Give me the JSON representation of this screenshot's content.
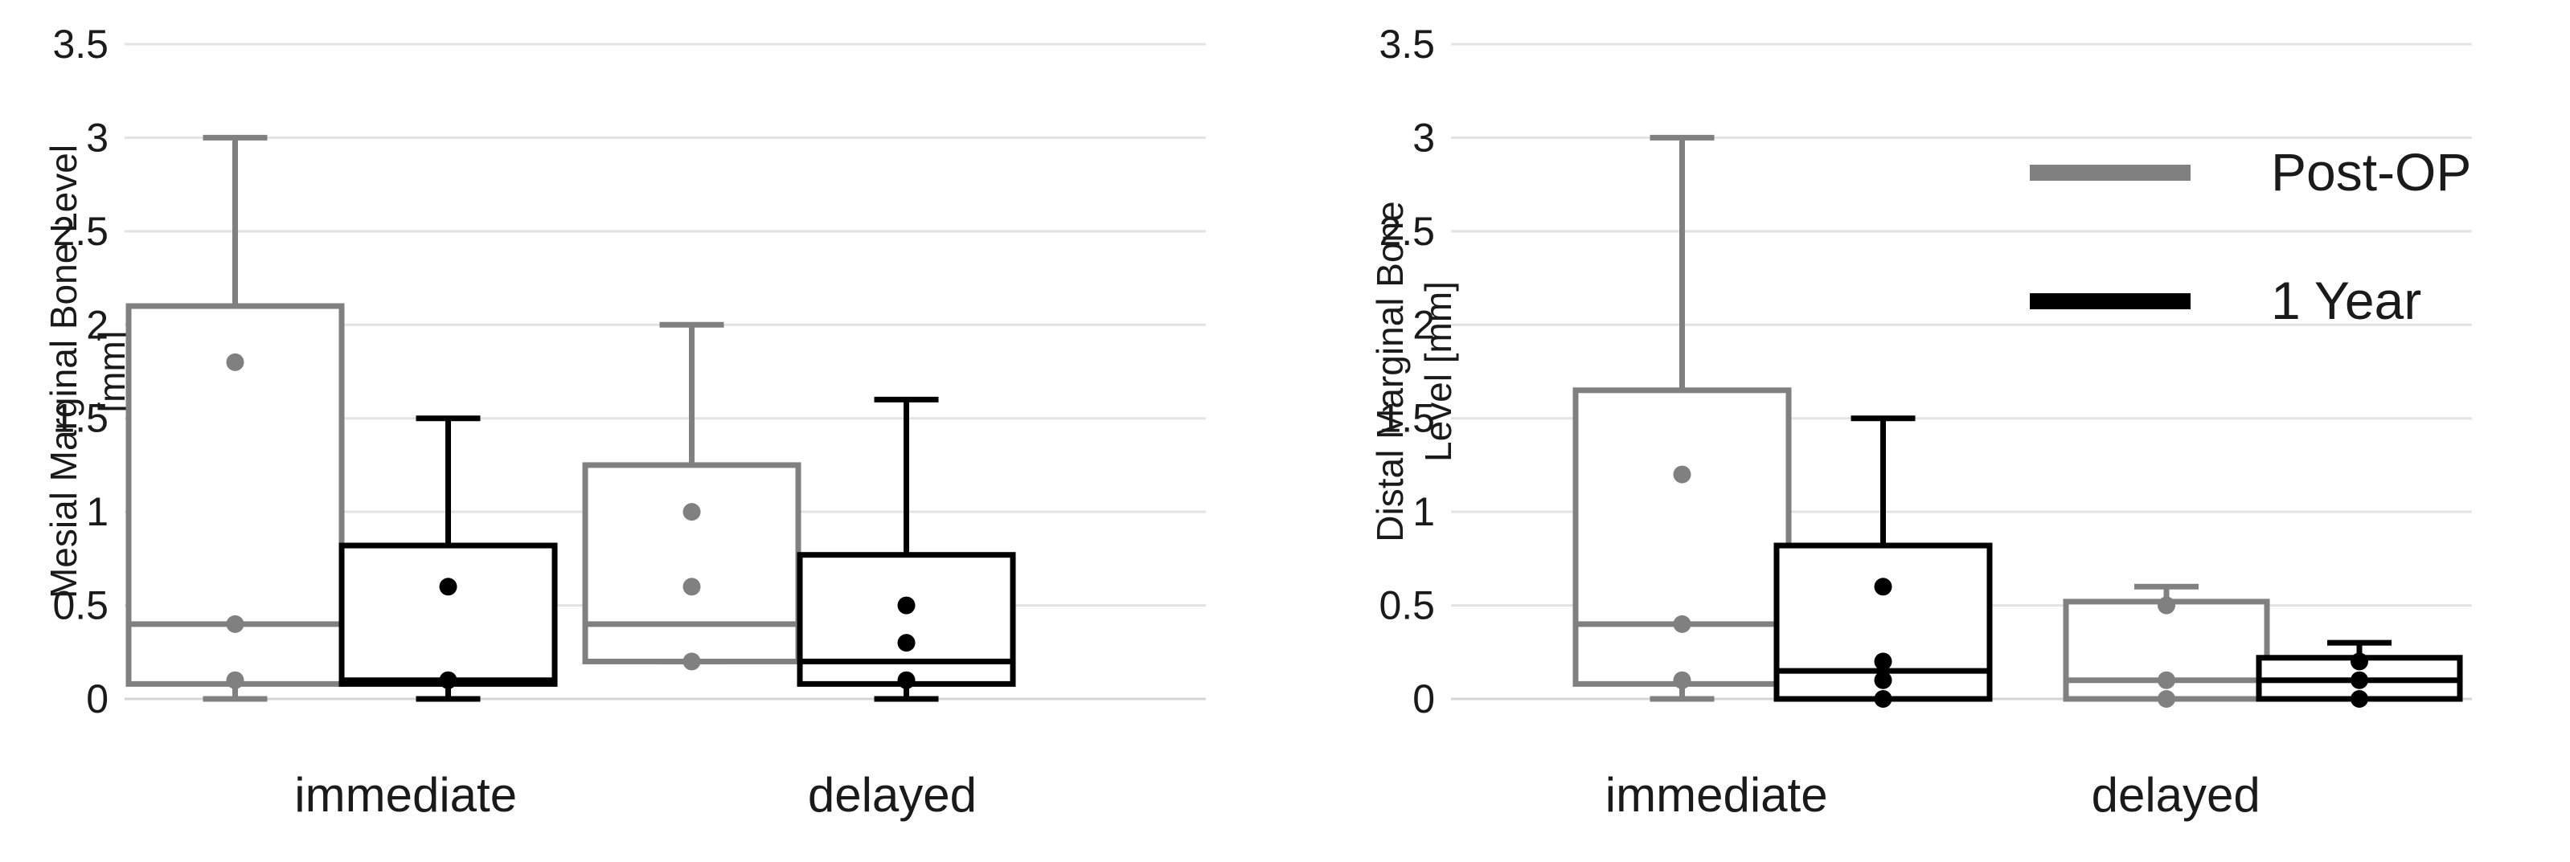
{
  "chart_data": [
    {
      "type": "box",
      "ylabel_lines": [
        "Mesial Marginal Bone Level",
        "[mm]"
      ],
      "ylim": [
        0,
        3.5
      ],
      "yticks": [
        "0",
        "0.5",
        "1",
        "1.5",
        "2",
        "2.5",
        "3",
        "3.5"
      ],
      "categories": [
        "immediate",
        "delayed"
      ],
      "grid": true,
      "series": [
        {
          "name": "Post-OP",
          "color": "#808080",
          "boxes": [
            {
              "min": 0,
              "q1": 0.08,
              "median": 0.4,
              "q3": 2.1,
              "max": 3.0,
              "points": [
                1.8,
                0.4,
                0.1
              ]
            },
            {
              "min": 0.2,
              "q1": 0.2,
              "median": 0.4,
              "q3": 1.25,
              "max": 2.0,
              "points": [
                1.0,
                0.6,
                0.2
              ]
            }
          ]
        },
        {
          "name": "1 Year",
          "color": "#000000",
          "boxes": [
            {
              "min": 0,
              "q1": 0.08,
              "median": 0.1,
              "q3": 0.82,
              "max": 1.5,
              "points": [
                0.6,
                0.1
              ]
            },
            {
              "min": 0,
              "q1": 0.08,
              "median": 0.2,
              "q3": 0.77,
              "max": 1.6,
              "points": [
                0.5,
                0.3,
                0.1
              ]
            }
          ]
        }
      ]
    },
    {
      "type": "box",
      "ylabel_lines": [
        "Distal Marginal Bone",
        "Level [mm]"
      ],
      "ylim": [
        0,
        3.5
      ],
      "yticks": [
        "0",
        "0.5",
        "1",
        "1.5",
        "2",
        "2.5",
        "3",
        "3.5"
      ],
      "categories": [
        "immediate",
        "delayed"
      ],
      "grid": true,
      "legend_position": "top-right",
      "series": [
        {
          "name": "Post-OP",
          "color": "#808080",
          "boxes": [
            {
              "min": 0,
              "q1": 0.08,
              "median": 0.4,
              "q3": 1.65,
              "max": 3.0,
              "points": [
                1.2,
                0.4,
                0.1
              ]
            },
            {
              "min": 0,
              "q1": 0,
              "median": 0.1,
              "q3": 0.52,
              "max": 0.6,
              "points": [
                0.5,
                0.1,
                0
              ]
            }
          ]
        },
        {
          "name": "1 Year",
          "color": "#000000",
          "boxes": [
            {
              "min": 0,
              "q1": 0,
              "median": 0.15,
              "q3": 0.82,
              "max": 1.5,
              "points": [
                0.6,
                0.2,
                0.1,
                0
              ]
            },
            {
              "min": 0,
              "q1": 0,
              "median": 0.1,
              "q3": 0.22,
              "max": 0.3,
              "points": [
                0.2,
                0.1,
                0
              ]
            }
          ]
        }
      ]
    }
  ]
}
